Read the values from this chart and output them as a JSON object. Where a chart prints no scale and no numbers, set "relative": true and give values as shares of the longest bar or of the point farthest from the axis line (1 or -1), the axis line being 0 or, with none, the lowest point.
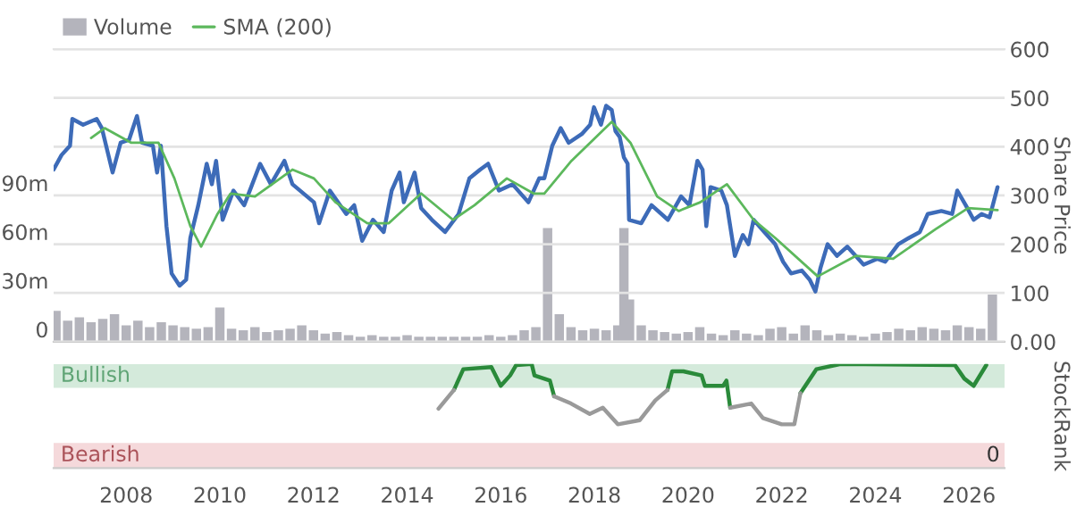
{
  "chart_data": [
    {
      "type": "line",
      "y2label": "Share Price",
      "legend": "top left",
      "grid": "y",
      "tick_labels": "y",
      "xlim": [
        2006.45,
        2026.76
      ],
      "xticks": [
        2008,
        2010,
        2012,
        2014,
        2016,
        2018,
        2020,
        2022,
        2024,
        2026
      ],
      "ylim": [
        0,
        180
      ],
      "yticks": [
        {
          "value": 0,
          "label": "0"
        },
        {
          "value": 30,
          "label": "30m"
        },
        {
          "value": 60,
          "label": "60m"
        },
        {
          "value": 90,
          "label": "90m"
        }
      ],
      "y2lim": [
        0,
        600
      ],
      "y2ticks": [
        {
          "value": 0,
          "label": "0.00"
        },
        100,
        200,
        300,
        400,
        500,
        600
      ],
      "series": [
        {
          "type": "bar",
          "name": "Volume",
          "color": "#b4b4bc",
          "x": [
            2006.5,
            2006.75,
            2007,
            2007.25,
            2007.5,
            2007.75,
            2008,
            2008.25,
            2008.5,
            2008.75,
            2009,
            2009.25,
            2009.5,
            2009.75,
            2010,
            2010.25,
            2010.5,
            2010.75,
            2011,
            2011.25,
            2011.5,
            2011.75,
            2012,
            2012.25,
            2012.5,
            2012.75,
            2013,
            2013.25,
            2013.5,
            2013.75,
            2014,
            2014.25,
            2014.5,
            2014.75,
            2015,
            2015.25,
            2015.5,
            2015.75,
            2016,
            2016.25,
            2016.5,
            2016.75,
            2017,
            2017.25,
            2017.5,
            2017.75,
            2018,
            2018.25,
            2018.5,
            2018.63,
            2018.75,
            2019,
            2019.25,
            2019.5,
            2019.75,
            2020,
            2020.25,
            2020.5,
            2020.75,
            2021,
            2021.25,
            2021.5,
            2021.75,
            2022,
            2022.25,
            2022.5,
            2022.75,
            2023,
            2023.25,
            2023.5,
            2023.75,
            2024,
            2024.25,
            2024.5,
            2024.75,
            2025,
            2025.25,
            2025.5,
            2025.75,
            2026,
            2026.25,
            2026.5
          ],
          "values": [
            19,
            13,
            15,
            12,
            14,
            17,
            10,
            13,
            9,
            12,
            10,
            9,
            8,
            9,
            21,
            8,
            7,
            9,
            6,
            7,
            8,
            10,
            7,
            5,
            6,
            4,
            3,
            4,
            3,
            3,
            4,
            3,
            3,
            3,
            3,
            3,
            3,
            4,
            3,
            4,
            7,
            9,
            70,
            17,
            9,
            7,
            8,
            7,
            10,
            70,
            26,
            10,
            7,
            6,
            5,
            6,
            9,
            5,
            4,
            7,
            5,
            4,
            8,
            9,
            5,
            10,
            7,
            4,
            5,
            4,
            3,
            5,
            6,
            8,
            7,
            9,
            8,
            7,
            10,
            9,
            8,
            29
          ]
        },
        {
          "type": "line",
          "axis": "y2",
          "color": "#3d6bb8",
          "x": [
            2006.45,
            2006.62,
            2006.8,
            2006.85,
            2007.08,
            2007.37,
            2007.48,
            2007.71,
            2007.88,
            2008.06,
            2008.23,
            2008.34,
            2008.57,
            2008.66,
            2008.74,
            2008.86,
            2008.97,
            2009.14,
            2009.28,
            2009.37,
            2009.54,
            2009.72,
            2009.83,
            2009.92,
            2010.06,
            2010.29,
            2010.52,
            2010.86,
            2011.09,
            2011.38,
            2011.55,
            2012.01,
            2012.12,
            2012.35,
            2012.7,
            2012.87,
            2013.04,
            2013.27,
            2013.5,
            2013.67,
            2013.84,
            2013.93,
            2014.16,
            2014.3,
            2014.53,
            2014.81,
            2015.1,
            2015.33,
            2015.56,
            2015.73,
            2015.96,
            2016.25,
            2016.59,
            2016.82,
            2016.93,
            2017.1,
            2017.28,
            2017.45,
            2017.73,
            2017.91,
            2017.99,
            2018.14,
            2018.25,
            2018.37,
            2018.45,
            2018.54,
            2018.63,
            2018.71,
            2018.74,
            2019.0,
            2019.22,
            2019.57,
            2019.85,
            2020.03,
            2020.2,
            2020.31,
            2020.39,
            2020.48,
            2020.71,
            2020.83,
            2021.0,
            2021.17,
            2021.29,
            2021.4,
            2021.63,
            2021.86,
            2022.03,
            2022.2,
            2022.43,
            2022.6,
            2022.72,
            2022.83,
            2022.98,
            2023.18,
            2023.4,
            2023.75,
            2024.04,
            2024.21,
            2024.49,
            2024.72,
            2024.95,
            2025.12,
            2025.41,
            2025.64,
            2025.75,
            2025.93,
            2026.1,
            2026.27,
            2026.44,
            2026.61
          ],
          "values": [
            353,
            383,
            402,
            457,
            445,
            457,
            438,
            347,
            408,
            414,
            463,
            408,
            402,
            347,
            402,
            237,
            140,
            115,
            127,
            213,
            280,
            365,
            323,
            371,
            250,
            310,
            280,
            365,
            323,
            371,
            323,
            286,
            243,
            310,
            262,
            280,
            207,
            250,
            225,
            310,
            347,
            286,
            347,
            274,
            250,
            225,
            262,
            335,
            353,
            365,
            310,
            323,
            286,
            335,
            335,
            402,
            438,
            408,
            426,
            445,
            481,
            445,
            484,
            475,
            432,
            420,
            378,
            365,
            250,
            243,
            280,
            250,
            298,
            280,
            371,
            353,
            237,
            317,
            310,
            280,
            176,
            219,
            200,
            250,
            225,
            200,
            164,
            140,
            146,
            127,
            103,
            152,
            200,
            176,
            195,
            158,
            170,
            164,
            200,
            213,
            225,
            262,
            268,
            262,
            310,
            280,
            250,
            262,
            255,
            317
          ]
        },
        {
          "type": "line",
          "axis": "y2",
          "name": "SMA (200)",
          "color": "#5cb85c",
          "x": [
            2007.25,
            2007.54,
            2008.11,
            2008.69,
            2009.03,
            2009.37,
            2009.6,
            2009.95,
            2010.23,
            2010.75,
            2011.55,
            2012.01,
            2012.47,
            2013.15,
            2013.61,
            2014.3,
            2014.98,
            2015.44,
            2016.13,
            2016.7,
            2016.93,
            2017.51,
            2018.37,
            2018.77,
            2019.34,
            2019.8,
            2020.26,
            2020.83,
            2021.4,
            2021.86,
            2022.77,
            2023.58,
            2024.38,
            2025.29,
            2025.98,
            2026.61
          ],
          "values": [
            418,
            438,
            408,
            408,
            335,
            237,
            195,
            262,
            304,
            298,
            353,
            335,
            286,
            243,
            243,
            304,
            250,
            280,
            335,
            304,
            304,
            371,
            451,
            408,
            298,
            268,
            286,
            323,
            250,
            213,
            134,
            176,
            170,
            231,
            274,
            270
          ]
        }
      ]
    },
    {
      "type": "line",
      "relative": true,
      "y2label": "StockRank",
      "tick_labels": "x",
      "xlim": [
        2006.45,
        2026.76
      ],
      "xticks": [
        2008,
        2010,
        2012,
        2014,
        2016,
        2018,
        2020,
        2022,
        2024,
        2026
      ],
      "bands": [
        {
          "axis": "y",
          "from": 0.77,
          "to": 1.0,
          "label": "Bullish",
          "color": "#d4eadb"
        },
        {
          "axis": "y",
          "from": 0,
          "to": 0.24,
          "label": "Bearish",
          "color": "#f5d9db"
        }
      ],
      "annotations": [
        "0"
      ],
      "x": [
        2014.67,
        2015.0,
        2015.2,
        2015.8,
        2016.0,
        2016.2,
        2016.33,
        2016.66,
        2016.72,
        2017.05,
        2017.14,
        2017.5,
        2017.9,
        2018.18,
        2018.5,
        2018.97,
        2019.3,
        2019.56,
        2019.66,
        2019.9,
        2020.29,
        2020.36,
        2020.75,
        2020.82,
        2020.9,
        2021.35,
        2021.6,
        2022.0,
        2022.27,
        2022.4,
        2022.74,
        2023.26,
        2025.7,
        2025.9,
        2026.1,
        2026.37
      ],
      "series": [
        {
          "color": "#2a8a3a",
          "values": [
            null,
            0.75,
            0.95,
            0.97,
            0.79,
            0.89,
            0.99,
            1.0,
            0.89,
            0.84,
            0.69,
            null,
            null,
            null,
            null,
            null,
            null,
            0.75,
            0.93,
            0.93,
            0.89,
            0.79,
            0.79,
            0.84,
            0.58,
            null,
            null,
            null,
            null,
            0.72,
            0.95,
            1.0,
            0.99,
            0.86,
            0.79,
            0.99
          ]
        },
        {
          "color": "#9a9a9a",
          "values": [
            0.57,
            0.75,
            null,
            null,
            null,
            null,
            null,
            null,
            null,
            null,
            0.69,
            0.62,
            0.52,
            0.58,
            0.42,
            0.46,
            0.65,
            0.75,
            null,
            null,
            null,
            null,
            null,
            null,
            0.58,
            0.62,
            0.48,
            0.42,
            0.42,
            0.72,
            null,
            null,
            null,
            null,
            null,
            null
          ]
        }
      ]
    }
  ]
}
